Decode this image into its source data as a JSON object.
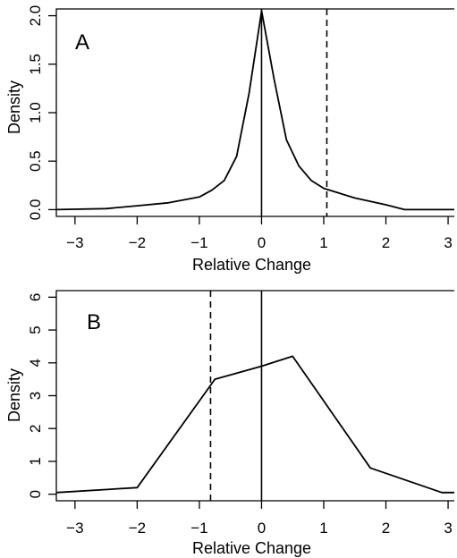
{
  "chart_data": [
    {
      "type": "line",
      "panel_label": "A",
      "xlabel": "Relative Change",
      "ylabel": "Density",
      "xlim": [
        -3.3,
        3.1
      ],
      "ylim": [
        -0.07,
        2.07
      ],
      "xticks": [
        -3,
        -2,
        -1,
        0,
        1,
        2,
        3
      ],
      "yticks": [
        0.0,
        0.5,
        1.0,
        1.5,
        2.0
      ],
      "ytick_labels": [
        "0.0",
        "0.5",
        "1.0",
        "1.5",
        "2.0"
      ],
      "grid": false,
      "x": [
        -3.3,
        -2.5,
        -2.0,
        -1.5,
        -1.0,
        -0.8,
        -0.6,
        -0.4,
        -0.2,
        0.0,
        0.2,
        0.4,
        0.6,
        0.8,
        1.0,
        1.5,
        2.0,
        2.3,
        2.6,
        3.1
      ],
      "y": [
        0.0,
        0.01,
        0.04,
        0.07,
        0.13,
        0.2,
        0.3,
        0.55,
        1.2,
        2.05,
        1.35,
        0.72,
        0.45,
        0.3,
        0.22,
        0.12,
        0.05,
        0.0,
        0.0,
        0.0
      ],
      "solid_vline_x": 0,
      "dashed_vline_x": 1.05
    },
    {
      "type": "line",
      "panel_label": "B",
      "xlabel": "Relative Change",
      "ylabel": "Density",
      "xlim": [
        -3.3,
        3.1
      ],
      "ylim": [
        -0.2,
        6.2
      ],
      "xticks": [
        -3,
        -2,
        -1,
        0,
        1,
        2,
        3
      ],
      "yticks": [
        0,
        1,
        2,
        3,
        4,
        5,
        6
      ],
      "ytick_labels": [
        "0",
        "1",
        "2",
        "3",
        "4",
        "5",
        "6"
      ],
      "grid": false,
      "x": [
        -3.3,
        -2.0,
        -0.75,
        0.0,
        0.5,
        1.75,
        2.9,
        3.1
      ],
      "y": [
        0.05,
        0.2,
        3.5,
        3.9,
        4.2,
        0.8,
        0.05,
        0.05
      ],
      "solid_vline_x": 0,
      "dashed_vline_x": -0.82
    }
  ]
}
